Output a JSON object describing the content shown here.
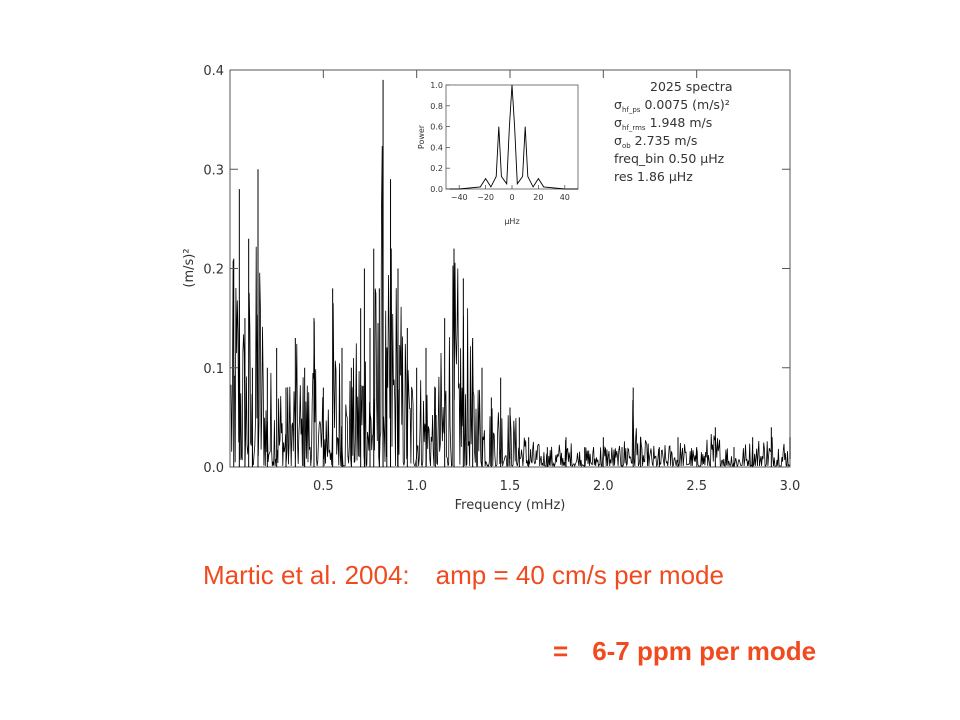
{
  "chart_data": {
    "type": "line",
    "xlabel": "Frequency (mHz)",
    "ylabel": "(m/s)²",
    "xlim": [
      0.0,
      3.0
    ],
    "ylim": [
      0.0,
      0.4
    ],
    "x_ticks": [
      "0.5",
      "1.0",
      "1.5",
      "2.0",
      "2.5",
      "3.0"
    ],
    "y_ticks": [
      "0.0",
      "0.1",
      "0.2",
      "0.3",
      "0.4"
    ],
    "grid": false,
    "series": [
      {
        "color": "#000000",
        "x": [
          0.02,
          0.05,
          0.08,
          0.1,
          0.12,
          0.15,
          0.2,
          0.25,
          0.3,
          0.35,
          0.4,
          0.45,
          0.5,
          0.55,
          0.6,
          0.65,
          0.7,
          0.72,
          0.75,
          0.77,
          0.8,
          0.82,
          0.84,
          0.86,
          0.9,
          0.95,
          1.0,
          1.05,
          1.1,
          1.15,
          1.2,
          1.25,
          1.3,
          1.35,
          1.4,
          1.45,
          1.5,
          1.55,
          1.6,
          1.7,
          1.8,
          1.9,
          2.0,
          2.1,
          2.16,
          2.2,
          2.3,
          2.4,
          2.5,
          2.6,
          2.7,
          2.8,
          2.9,
          3.0
        ],
        "y": [
          0.21,
          0.28,
          0.15,
          0.23,
          0.1,
          0.3,
          0.1,
          0.12,
          0.08,
          0.13,
          0.1,
          0.15,
          0.08,
          0.18,
          0.12,
          0.1,
          0.16,
          0.2,
          0.14,
          0.22,
          0.18,
          0.39,
          0.12,
          0.29,
          0.2,
          0.14,
          0.1,
          0.12,
          0.08,
          0.15,
          0.22,
          0.19,
          0.13,
          0.1,
          0.07,
          0.09,
          0.06,
          0.05,
          0.03,
          0.02,
          0.03,
          0.02,
          0.03,
          0.02,
          0.08,
          0.03,
          0.02,
          0.03,
          0.02,
          0.04,
          0.02,
          0.03,
          0.04,
          0.03
        ]
      }
    ],
    "inset": {
      "type": "line",
      "xlabel": "μHz",
      "ylabel": "Power",
      "xlim": [
        -50,
        50
      ],
      "ylim": [
        0.0,
        1.0
      ],
      "x_ticks": [
        "−40",
        "−20",
        "0",
        "20",
        "40"
      ],
      "y_ticks": [
        "0.0",
        "0.2",
        "0.4",
        "0.6",
        "0.8",
        "1.0"
      ],
      "x": [
        -50,
        -40,
        -24,
        -20,
        -16,
        -12,
        -10,
        -8,
        -4,
        -2,
        0,
        2,
        4,
        8,
        10,
        12,
        16,
        20,
        24,
        40,
        50
      ],
      "y": [
        0.0,
        0.0,
        0.02,
        0.1,
        0.02,
        0.12,
        0.6,
        0.12,
        0.05,
        0.6,
        1.0,
        0.6,
        0.05,
        0.12,
        0.6,
        0.12,
        0.02,
        0.1,
        0.02,
        0.0,
        0.0
      ]
    },
    "annotations": [
      "2025 spectra",
      "σ_hf_ps 0.0075 (m/s)²",
      "σ_hf_rms 1.948 m/s",
      "σ_ob 2.735 m/s",
      "freq_bin 0.50 μHz",
      "res 1.86 μHz"
    ]
  },
  "legend": {
    "title": "2025 spectra",
    "lines": [
      {
        "symbol": "σ",
        "sub": "hf_ps",
        "text": "0.0075 (m/s)²"
      },
      {
        "symbol": "σ",
        "sub": "hf_rms",
        "text": "1.948 m/s"
      },
      {
        "symbol": "σ",
        "sub": "ob",
        "text": "2.735 m/s"
      },
      {
        "symbol": "",
        "sub": "",
        "text": "freq_bin 0.50 μHz"
      },
      {
        "symbol": "",
        "sub": "",
        "text": "res 1.86 μHz"
      }
    ]
  },
  "caption": {
    "line1_left": "Martic et al. 2004:",
    "line1_right": "amp = 40 cm/s per mode",
    "line2_left": "=",
    "line2_right": "6-7 ppm per mode"
  },
  "colors": {
    "caption": "#f04a1e",
    "axis": "#555555",
    "trace": "#000000"
  }
}
